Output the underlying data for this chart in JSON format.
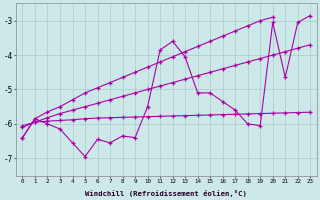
{
  "xlabel": "Windchill (Refroidissement éolien,°C)",
  "x_labels": [
    "0",
    "1",
    "2",
    "3",
    "4",
    "5",
    "6",
    "7",
    "8",
    "9",
    "10",
    "11",
    "12",
    "13",
    "14",
    "15",
    "16",
    "17",
    "18",
    "19",
    "20",
    "21",
    "22",
    "23"
  ],
  "ylim": [
    -7.5,
    -2.5
  ],
  "xlim": [
    -0.5,
    23.5
  ],
  "yticks": [
    -7,
    -6,
    -5,
    -4,
    -3
  ],
  "background_color": "#cce8e8",
  "line_color": "#aa00aa",
  "grid_color": "#aacccc",
  "series": {
    "zigzag": [
      -6.4,
      -5.85,
      -6.0,
      -6.15,
      -6.55,
      -6.95,
      -6.45,
      -6.55,
      -6.35,
      -6.4,
      -5.5,
      -3.85,
      -3.6,
      -4.05,
      -5.1,
      -5.1,
      -5.35,
      -5.6,
      -6.0,
      -6.05,
      -3.05,
      -4.65,
      -3.05,
      -2.85
    ],
    "trend_steep": [
      -6.4,
      -5.85,
      -5.65,
      -5.5,
      -5.3,
      -5.1,
      -4.95,
      -4.8,
      -4.65,
      -4.5,
      -4.35,
      -4.2,
      -4.05,
      -3.9,
      -3.75,
      -3.6,
      -3.45,
      -3.3,
      -3.15,
      -3.0,
      -2.9,
      null,
      null,
      null
    ],
    "trend_mid": [
      -6.1,
      -5.95,
      -5.82,
      -5.7,
      -5.6,
      -5.5,
      -5.4,
      -5.3,
      -5.2,
      -5.1,
      -5.0,
      -4.9,
      -4.8,
      -4.7,
      -4.6,
      -4.5,
      -4.4,
      -4.3,
      -4.2,
      -4.1,
      -4.0,
      -3.9,
      -3.8,
      -3.7
    ],
    "flat": [
      -6.05,
      -5.95,
      -5.92,
      -5.9,
      -5.88,
      -5.85,
      -5.83,
      -5.82,
      -5.81,
      -5.8,
      -5.79,
      -5.78,
      -5.77,
      -5.76,
      -5.75,
      -5.74,
      -5.73,
      -5.72,
      -5.71,
      -5.7,
      -5.69,
      -5.68,
      -5.67,
      -5.66
    ]
  }
}
